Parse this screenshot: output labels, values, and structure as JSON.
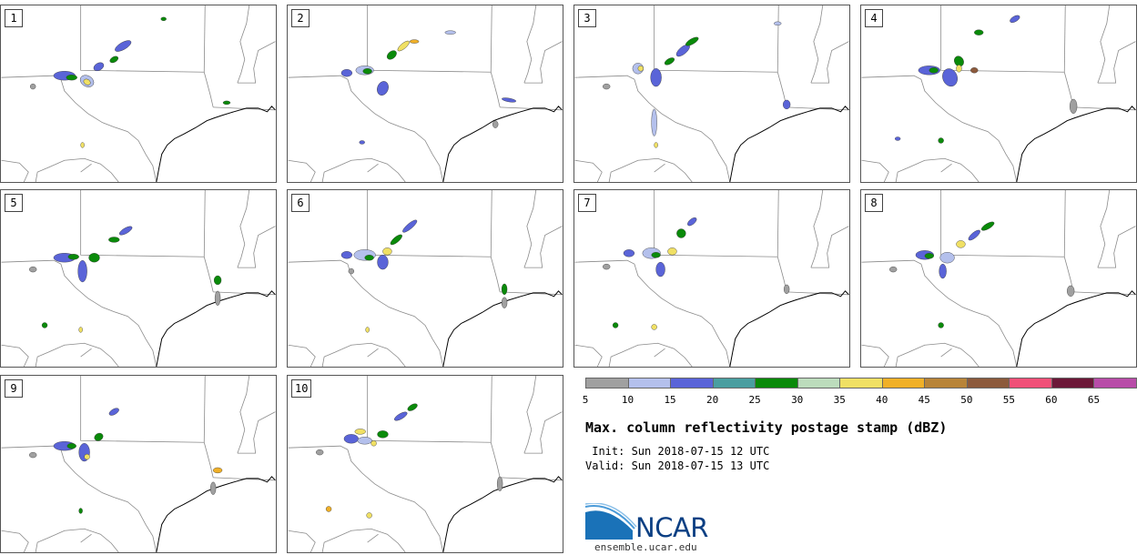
{
  "panels": [
    {
      "label": "1"
    },
    {
      "label": "2"
    },
    {
      "label": "3"
    },
    {
      "label": "4"
    },
    {
      "label": "5"
    },
    {
      "label": "6"
    },
    {
      "label": "7"
    },
    {
      "label": "8"
    },
    {
      "label": "9"
    },
    {
      "label": "10"
    }
  ],
  "colorbar": {
    "ticks": [
      "5",
      "10",
      "15",
      "20",
      "25",
      "30",
      "35",
      "40",
      "45",
      "50",
      "55",
      "60",
      "65"
    ],
    "colors": [
      "#a0a0a0",
      "#b4c0ec",
      "#5a64d8",
      "#4a9ea0",
      "#0a8a0a",
      "#bcdcbc",
      "#f0e064",
      "#f0b028",
      "#b88438",
      "#8c5a3c",
      "#f05078",
      "#6c1838",
      "#b84ca8"
    ]
  },
  "title": "Max. column reflectivity postage stamp (dBZ)",
  "init_time": " Init: Sun 2018-07-15 12 UTC",
  "valid_time": "Valid: Sun 2018-07-15 13 UTC",
  "logo": {
    "text": "NCAR",
    "url": "ensemble.ucar.edu"
  }
}
